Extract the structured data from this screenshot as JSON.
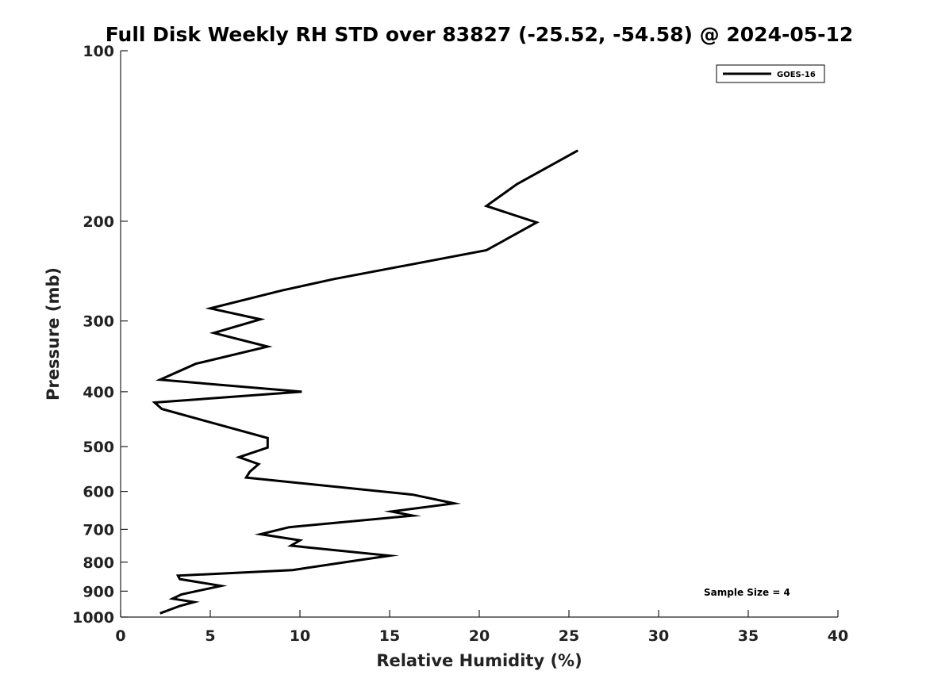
{
  "chart_data": {
    "type": "line",
    "title": "Full Disk Weekly RH STD over 83827 (-25.52, -54.58) @ 2024-05-12",
    "xlabel": "Relative Humidity (%)",
    "ylabel": "Pressure (mb)",
    "xlim": [
      0,
      40
    ],
    "ylim": [
      1000,
      100
    ],
    "yscale": "log",
    "x_ticks": [
      0,
      5,
      10,
      15,
      20,
      25,
      30,
      35,
      40
    ],
    "y_ticks": [
      100,
      200,
      300,
      400,
      500,
      600,
      700,
      800,
      900,
      1000
    ],
    "grid": false,
    "legend_position": "top-right",
    "series": [
      {
        "name": "GOES-16",
        "color": "#000000",
        "x": [
          25.5,
          22.1,
          20.4,
          23.2,
          20.4,
          11.9,
          9.0,
          5.0,
          7.8,
          5.2,
          8.2,
          4.2,
          2.2,
          10.1,
          1.9,
          2.3,
          5.1,
          8.2,
          8.2,
          6.6,
          7.7,
          7.2,
          7.0,
          16.3,
          18.6,
          15.1,
          16.3,
          9.4,
          7.8,
          10.0,
          9.5,
          15.0,
          13.1,
          9.6,
          3.2,
          3.3,
          5.6,
          3.4,
          2.9,
          4.1,
          3.3,
          2.2
        ],
        "y": [
          150,
          172,
          188,
          201,
          225,
          253,
          265,
          285,
          298,
          315,
          333,
          357,
          381,
          400,
          418,
          429,
          454,
          483,
          502,
          522,
          537,
          554,
          567,
          608,
          630,
          651,
          662,
          694,
          714,
          732,
          748,
          779,
          795,
          826,
          845,
          857,
          881,
          912,
          928,
          941,
          956,
          985
        ]
      }
    ],
    "annotations": [
      "Sample Size = 4"
    ]
  }
}
